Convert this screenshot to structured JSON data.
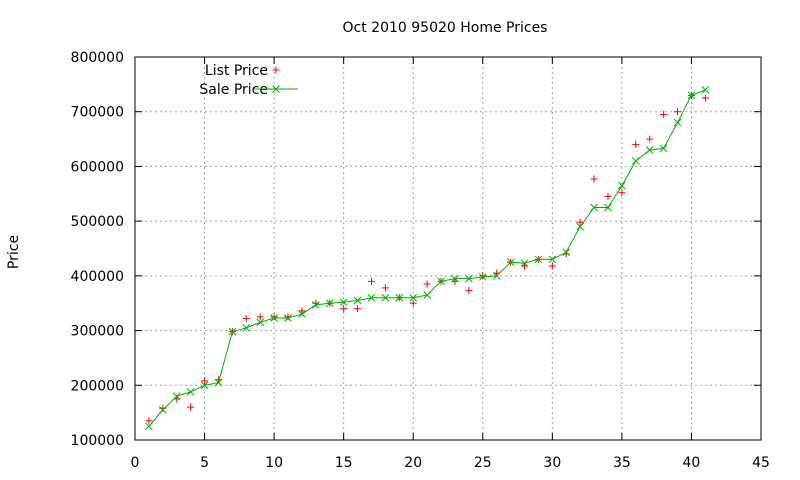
{
  "chart_data": {
    "type": "scatter",
    "title": "Oct 2010 95020 Home Prices",
    "xlabel": "",
    "ylabel": "Price",
    "xlim": [
      0,
      45
    ],
    "ylim": [
      100000,
      800000
    ],
    "xticks": [
      0,
      5,
      10,
      15,
      20,
      25,
      30,
      35,
      40,
      45
    ],
    "yticks": [
      100000,
      200000,
      300000,
      400000,
      500000,
      600000,
      700000,
      800000
    ],
    "grid": true,
    "legend_position": "top-left",
    "series": [
      {
        "name": "List Price",
        "style": "points",
        "marker": "plus",
        "color": "#ff0000",
        "x": [
          1,
          2,
          3,
          4,
          5,
          6,
          7,
          8,
          9,
          10,
          11,
          12,
          13,
          14,
          15,
          16,
          17,
          18,
          19,
          20,
          21,
          22,
          23,
          24,
          25,
          26,
          27,
          28,
          29,
          30,
          31,
          32,
          33,
          34,
          35,
          36,
          37,
          38,
          39,
          40,
          41
        ],
        "y": [
          135000,
          158000,
          175000,
          160000,
          208000,
          210000,
          298000,
          322000,
          325000,
          325000,
          325000,
          336000,
          350000,
          350000,
          340000,
          340000,
          390000,
          378000,
          360000,
          350000,
          385000,
          390000,
          390000,
          373000,
          400000,
          405000,
          425000,
          418000,
          430000,
          418000,
          440000,
          498000,
          577000,
          545000,
          552000,
          640000,
          650000,
          695000,
          700000,
          730000,
          725000
        ]
      },
      {
        "name": "Sale Price",
        "style": "linespoints",
        "marker": "x",
        "color": "#00b000",
        "x": [
          1,
          2,
          3,
          4,
          5,
          6,
          7,
          8,
          9,
          10,
          11,
          12,
          13,
          14,
          15,
          16,
          17,
          18,
          19,
          20,
          21,
          22,
          23,
          24,
          25,
          26,
          27,
          28,
          29,
          30,
          31,
          32,
          33,
          34,
          35,
          36,
          37,
          38,
          39,
          40,
          41
        ],
        "y": [
          125000,
          155000,
          180000,
          188000,
          200000,
          205000,
          298000,
          305000,
          315000,
          323000,
          323000,
          330000,
          347000,
          350000,
          352000,
          355000,
          360000,
          360000,
          360000,
          360000,
          365000,
          390000,
          395000,
          395000,
          398000,
          400000,
          425000,
          423000,
          430000,
          430000,
          443000,
          490000,
          525000,
          525000,
          565000,
          610000,
          630000,
          633000,
          680000,
          730000,
          740000
        ]
      }
    ]
  }
}
